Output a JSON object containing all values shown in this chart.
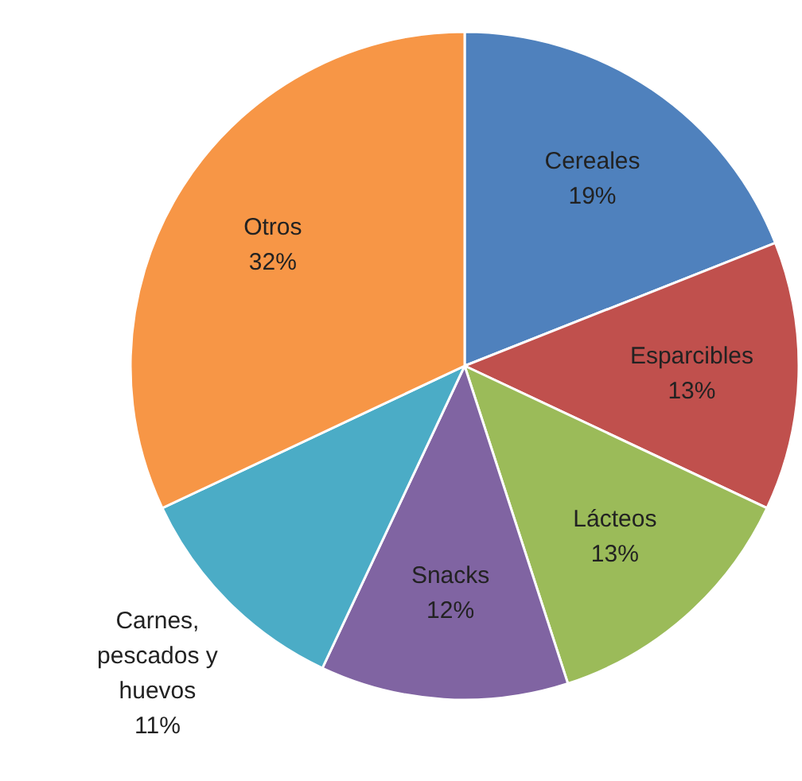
{
  "chart_data": {
    "type": "pie",
    "categories": [
      "Cereales",
      "Esparcibles",
      "Lácteos",
      "Snacks",
      "Carnes, pescados y huevos",
      "Otros"
    ],
    "values": [
      19,
      13,
      13,
      12,
      11,
      32
    ],
    "colors": [
      "#4f81bd",
      "#c0504d",
      "#9bbb59",
      "#8064a2",
      "#4bacc6",
      "#f79646"
    ],
    "value_labels": [
      "19%",
      "13%",
      "13%",
      "12%",
      "11%",
      "32%"
    ]
  }
}
